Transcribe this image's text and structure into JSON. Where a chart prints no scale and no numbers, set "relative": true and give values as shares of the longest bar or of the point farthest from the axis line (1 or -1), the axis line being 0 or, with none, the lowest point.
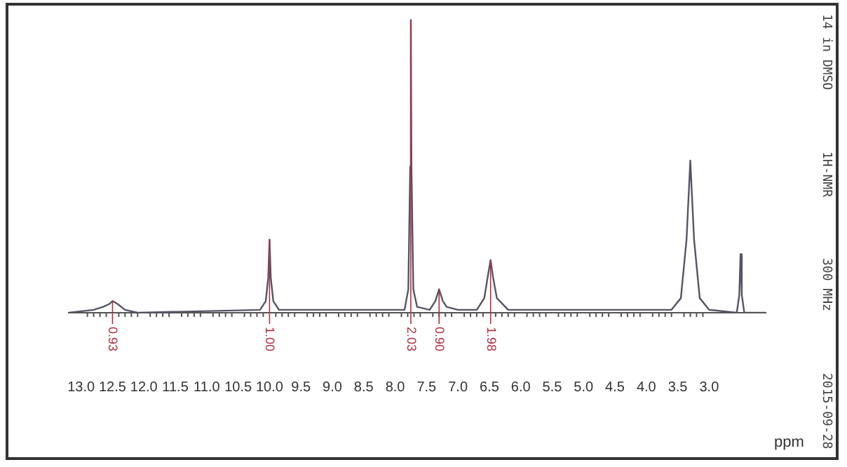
{
  "chart_data": {
    "type": "line",
    "relative": true,
    "xlabel": "ppm",
    "color": "#555566",
    "x": [
      13.2,
      12.8,
      12.65,
      12.55,
      12.5,
      12.42,
      12.3,
      12.1,
      10.15,
      10.06,
      10.02,
      10.0,
      9.98,
      9.94,
      9.85,
      7.85,
      7.79,
      7.76,
      7.75,
      7.74,
      7.71,
      7.65,
      7.45,
      7.36,
      7.3,
      7.24,
      7.18,
      7.0,
      6.7,
      6.58,
      6.52,
      6.48,
      6.44,
      6.38,
      6.2,
      3.6,
      3.45,
      3.36,
      3.3,
      3.24,
      3.15,
      3.0,
      2.56,
      2.52,
      2.5,
      2.48,
      2.44,
      2.1
    ],
    "values": [
      0,
      0.01,
      0.02,
      0.03,
      0.04,
      0.03,
      0.01,
      0,
      0.01,
      0.04,
      0.12,
      0.25,
      0.12,
      0.04,
      0.01,
      0.01,
      0.08,
      0.5,
      1.0,
      0.5,
      0.08,
      0.02,
      0.01,
      0.04,
      0.08,
      0.04,
      0.02,
      0.01,
      0.01,
      0.05,
      0.13,
      0.18,
      0.12,
      0.05,
      0.01,
      0.01,
      0.05,
      0.25,
      0.52,
      0.25,
      0.05,
      0.01,
      0,
      0.06,
      0.2,
      0.06,
      0,
      0
    ],
    "xlim": [
      13.2,
      2.1
    ],
    "xticks": [
      {
        "value": 13,
        "label": "13.0"
      },
      {
        "value": 12.5,
        "label": "12.5"
      },
      {
        "value": 12,
        "label": "12.0"
      },
      {
        "value": 11.5,
        "label": "11.5"
      },
      {
        "value": 11,
        "label": "11.0"
      },
      {
        "value": 10.5,
        "label": "10.5"
      },
      {
        "value": 10,
        "label": "10.0"
      },
      {
        "value": 9.5,
        "label": "9.5"
      },
      {
        "value": 9,
        "label": "9.0"
      },
      {
        "value": 8.5,
        "label": "8.5"
      },
      {
        "value": 8,
        "label": "8.0"
      },
      {
        "value": 7.5,
        "label": "7.5"
      },
      {
        "value": 7,
        "label": "7.0"
      },
      {
        "value": 6.5,
        "label": "6.5"
      },
      {
        "value": 6,
        "label": "6.0"
      },
      {
        "value": 5.5,
        "label": "5.5"
      },
      {
        "value": 5,
        "label": "5.0"
      },
      {
        "value": 4.5,
        "label": "4.5"
      },
      {
        "value": 4,
        "label": "4.0"
      },
      {
        "value": 3.5,
        "label": "3.5"
      },
      {
        "value": 3,
        "label": "3.0"
      }
    ],
    "tick_labels": "x",
    "grid": false,
    "legend": false,
    "marker": "none",
    "line_style": "solid",
    "annotations": [
      {
        "text": "0.93",
        "x": 12.5,
        "y": 0.04
      },
      {
        "text": "1.00",
        "x": 10.0,
        "y": 0.25
      },
      {
        "text": "2.03",
        "x": 7.75,
        "y": 1.0
      },
      {
        "text": "0.90",
        "x": 7.3,
        "y": 0.08
      },
      {
        "text": "1.98",
        "x": 6.48,
        "y": 0.18
      },
      "14 in DMSO",
      "1H-NMR",
      "300 MHz",
      "2015-09-28"
    ]
  }
}
